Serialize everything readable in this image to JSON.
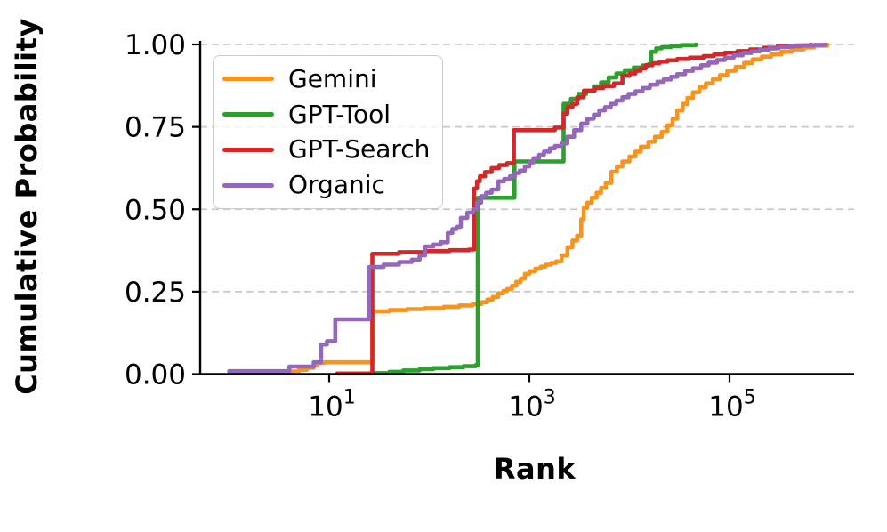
{
  "figure": {
    "background": "#ffffff",
    "ylabel": "Cumulative Probability",
    "xlabel": "Rank"
  },
  "chart_data": {
    "type": "line",
    "subtype": "ecdf-step",
    "title": "",
    "xlabel": "Rank",
    "ylabel": "Cumulative Probability",
    "x_scale": "log",
    "xlim": [
      1,
      1000000
    ],
    "ylim": [
      0,
      1
    ],
    "grid": "horizontal-dashed",
    "grid_color": "#c9c9c9",
    "legend_position": "upper-left",
    "x_ticks": [
      {
        "base": "10",
        "exponent": "1",
        "log_value": 1
      },
      {
        "base": "10",
        "exponent": "3",
        "log_value": 3
      },
      {
        "base": "10",
        "exponent": "5",
        "log_value": 5
      }
    ],
    "y_ticks": [
      {
        "label": "0.00",
        "value": 0.0
      },
      {
        "label": "0.25",
        "value": 0.25
      },
      {
        "label": "0.50",
        "value": 0.5
      },
      {
        "label": "0.75",
        "value": 0.75
      },
      {
        "label": "1.00",
        "value": 1.0
      }
    ],
    "series": [
      {
        "name": "Gemini",
        "color": "#f8941d",
        "points": [
          [
            4,
            0.008
          ],
          [
            5,
            0.013
          ],
          [
            6,
            0.019
          ],
          [
            7,
            0.026
          ],
          [
            7.6,
            0.034
          ],
          [
            9,
            0.036
          ],
          [
            27,
            0.19
          ],
          [
            40,
            0.194
          ],
          [
            60,
            0.197
          ],
          [
            90,
            0.2
          ],
          [
            140,
            0.204
          ],
          [
            200,
            0.208
          ],
          [
            270,
            0.212
          ],
          [
            330,
            0.218
          ],
          [
            380,
            0.226
          ],
          [
            430,
            0.234
          ],
          [
            490,
            0.245
          ],
          [
            550,
            0.252
          ],
          [
            600,
            0.258
          ],
          [
            670,
            0.268
          ],
          [
            740,
            0.28
          ],
          [
            820,
            0.29
          ],
          [
            900,
            0.304
          ],
          [
            1000,
            0.312
          ],
          [
            1150,
            0.32
          ],
          [
            1300,
            0.326
          ],
          [
            1450,
            0.332
          ],
          [
            1650,
            0.337
          ],
          [
            1850,
            0.342
          ],
          [
            2100,
            0.36
          ],
          [
            2400,
            0.385
          ],
          [
            2700,
            0.405
          ],
          [
            3000,
            0.42
          ],
          [
            3300,
            0.47
          ],
          [
            3500,
            0.505
          ],
          [
            3800,
            0.52
          ],
          [
            4200,
            0.535
          ],
          [
            4700,
            0.55
          ],
          [
            5200,
            0.565
          ],
          [
            5800,
            0.58
          ],
          [
            6600,
            0.614
          ],
          [
            7500,
            0.63
          ],
          [
            8500,
            0.645
          ],
          [
            10000,
            0.66
          ],
          [
            11500,
            0.675
          ],
          [
            13000,
            0.69
          ],
          [
            15500,
            0.705
          ],
          [
            18000,
            0.72
          ],
          [
            21000,
            0.735
          ],
          [
            24000,
            0.755
          ],
          [
            27000,
            0.775
          ],
          [
            30000,
            0.8
          ],
          [
            34000,
            0.82
          ],
          [
            38000,
            0.838
          ],
          [
            43000,
            0.855
          ],
          [
            50000,
            0.87
          ],
          [
            58000,
            0.882
          ],
          [
            68000,
            0.895
          ],
          [
            80000,
            0.907
          ],
          [
            95000,
            0.92
          ],
          [
            115000,
            0.932
          ],
          [
            140000,
            0.944
          ],
          [
            170000,
            0.955
          ],
          [
            210000,
            0.963
          ],
          [
            260000,
            0.97
          ],
          [
            330000,
            0.978
          ],
          [
            420000,
            0.985
          ],
          [
            550000,
            0.991
          ],
          [
            700000,
            0.996
          ],
          [
            950000,
            1.0
          ]
        ]
      },
      {
        "name": "GPT-Tool",
        "color": "#2ca02c",
        "points": [
          [
            28,
            0.003
          ],
          [
            40,
            0.007
          ],
          [
            55,
            0.011
          ],
          [
            80,
            0.015
          ],
          [
            110,
            0.018
          ],
          [
            160,
            0.021
          ],
          [
            220,
            0.024
          ],
          [
            290,
            0.027
          ],
          [
            305,
            0.535
          ],
          [
            710,
            0.645
          ],
          [
            2200,
            0.82
          ],
          [
            2600,
            0.835
          ],
          [
            3100,
            0.85
          ],
          [
            3700,
            0.86
          ],
          [
            4400,
            0.873
          ],
          [
            5200,
            0.885
          ],
          [
            6200,
            0.9
          ],
          [
            7400,
            0.912
          ],
          [
            9000,
            0.922
          ],
          [
            11000,
            0.93
          ],
          [
            13500,
            0.936
          ],
          [
            15500,
            0.94
          ],
          [
            16500,
            0.978
          ],
          [
            18500,
            0.988
          ],
          [
            21000,
            0.992
          ],
          [
            26000,
            0.995
          ],
          [
            33000,
            0.998
          ],
          [
            46000,
            1.0
          ]
        ]
      },
      {
        "name": "GPT-Search",
        "color": "#d62728",
        "points": [
          [
            12,
            0.002
          ],
          [
            26,
            0.003
          ],
          [
            27,
            0.365
          ],
          [
            50,
            0.37
          ],
          [
            90,
            0.373
          ],
          [
            160,
            0.376
          ],
          [
            250,
            0.378
          ],
          [
            280,
            0.563
          ],
          [
            300,
            0.585
          ],
          [
            320,
            0.6
          ],
          [
            360,
            0.613
          ],
          [
            420,
            0.625
          ],
          [
            500,
            0.634
          ],
          [
            600,
            0.64
          ],
          [
            700,
            0.74
          ],
          [
            1800,
            0.748
          ],
          [
            2200,
            0.79
          ],
          [
            2400,
            0.81
          ],
          [
            2700,
            0.82
          ],
          [
            3000,
            0.84
          ],
          [
            3500,
            0.86
          ],
          [
            4500,
            0.868
          ],
          [
            5500,
            0.874
          ],
          [
            7000,
            0.882
          ],
          [
            8500,
            0.905
          ],
          [
            10000,
            0.912
          ],
          [
            11500,
            0.92
          ],
          [
            13000,
            0.928
          ],
          [
            14500,
            0.937
          ],
          [
            17000,
            0.943
          ],
          [
            20000,
            0.948
          ],
          [
            24000,
            0.952
          ],
          [
            30000,
            0.956
          ],
          [
            40000,
            0.96
          ],
          [
            55000,
            0.965
          ],
          [
            70000,
            0.97
          ],
          [
            90000,
            0.975
          ],
          [
            120000,
            0.98
          ],
          [
            160000,
            0.985
          ],
          [
            220000,
            0.99
          ],
          [
            300000,
            0.994
          ],
          [
            450000,
            0.997
          ],
          [
            650000,
            1.0
          ]
        ]
      },
      {
        "name": "Organic",
        "color": "#9467bd",
        "points": [
          [
            1,
            0.009
          ],
          [
            4,
            0.023
          ],
          [
            7,
            0.036
          ],
          [
            8.3,
            0.09
          ],
          [
            9.5,
            0.1
          ],
          [
            11.5,
            0.166
          ],
          [
            25,
            0.325
          ],
          [
            35,
            0.332
          ],
          [
            50,
            0.34
          ],
          [
            67,
            0.347
          ],
          [
            80,
            0.36
          ],
          [
            91,
            0.387
          ],
          [
            110,
            0.393
          ],
          [
            130,
            0.4
          ],
          [
            153,
            0.428
          ],
          [
            170,
            0.44
          ],
          [
            187,
            0.447
          ],
          [
            207,
            0.474
          ],
          [
            240,
            0.49
          ],
          [
            275,
            0.5
          ],
          [
            300,
            0.52
          ],
          [
            330,
            0.54
          ],
          [
            370,
            0.55
          ],
          [
            420,
            0.56
          ],
          [
            490,
            0.585
          ],
          [
            560,
            0.592
          ],
          [
            640,
            0.6
          ],
          [
            720,
            0.61
          ],
          [
            800,
            0.617
          ],
          [
            900,
            0.63
          ],
          [
            1000,
            0.642
          ],
          [
            1100,
            0.655
          ],
          [
            1250,
            0.665
          ],
          [
            1400,
            0.675
          ],
          [
            1600,
            0.685
          ],
          [
            1800,
            0.692
          ],
          [
            2100,
            0.7
          ],
          [
            2400,
            0.72
          ],
          [
            2800,
            0.74
          ],
          [
            3300,
            0.76
          ],
          [
            3800,
            0.775
          ],
          [
            4400,
            0.787
          ],
          [
            5000,
            0.8
          ],
          [
            5700,
            0.81
          ],
          [
            6500,
            0.82
          ],
          [
            7400,
            0.83
          ],
          [
            8500,
            0.84
          ],
          [
            9800,
            0.85
          ],
          [
            11500,
            0.858
          ],
          [
            13500,
            0.868
          ],
          [
            16000,
            0.878
          ],
          [
            19000,
            0.887
          ],
          [
            22000,
            0.894
          ],
          [
            26000,
            0.902
          ],
          [
            30000,
            0.91
          ],
          [
            36000,
            0.92
          ],
          [
            43000,
            0.928
          ],
          [
            52000,
            0.937
          ],
          [
            62000,
            0.945
          ],
          [
            75000,
            0.953
          ],
          [
            90000,
            0.96
          ],
          [
            110000,
            0.967
          ],
          [
            135000,
            0.974
          ],
          [
            165000,
            0.979
          ],
          [
            200000,
            0.984
          ],
          [
            250000,
            0.988
          ],
          [
            310000,
            0.992
          ],
          [
            400000,
            0.995
          ],
          [
            520000,
            0.997
          ],
          [
            700000,
            0.999
          ],
          [
            900000,
            1.0
          ]
        ]
      }
    ]
  }
}
